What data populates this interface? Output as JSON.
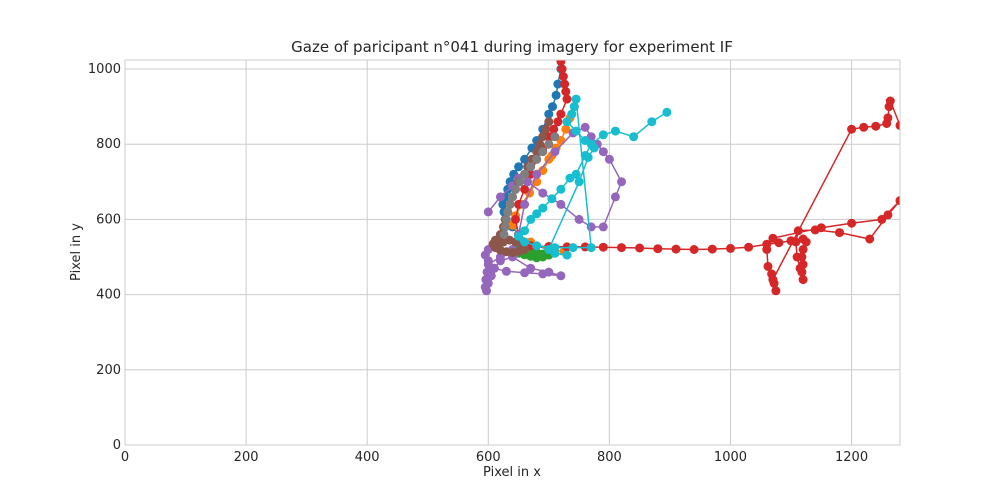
{
  "chart_data": {
    "type": "scatter",
    "title": "Gaze of paricipant n°041 during imagery for experiment IF",
    "xlabel": "Pixel in x",
    "ylabel": "Pixel in y",
    "xlim": [
      0,
      1280
    ],
    "ylim": [
      0,
      1024
    ],
    "xticks": [
      0,
      200,
      400,
      600,
      800,
      1000,
      1200
    ],
    "yticks": [
      0,
      200,
      400,
      600,
      800,
      1000
    ],
    "grid": true,
    "legend": "none",
    "series": [
      {
        "color": "#1f77b4",
        "points": [
          [
            720,
            1000
          ],
          [
            715,
            960
          ],
          [
            712,
            930
          ],
          [
            706,
            900
          ],
          [
            700,
            880
          ],
          [
            690,
            840
          ],
          [
            680,
            810
          ],
          [
            672,
            790
          ],
          [
            660,
            760
          ],
          [
            650,
            740
          ],
          [
            642,
            720
          ],
          [
            636,
            700
          ],
          [
            632,
            680
          ],
          [
            628,
            660
          ],
          [
            624,
            640
          ],
          [
            626,
            620
          ],
          [
            640,
            580
          ],
          [
            660,
            540
          ],
          [
            700,
            520
          ]
        ]
      },
      {
        "color": "#ff7f0e",
        "points": [
          [
            742,
            900
          ],
          [
            735,
            870
          ],
          [
            728,
            840
          ],
          [
            720,
            810
          ],
          [
            712,
            790
          ],
          [
            705,
            770
          ],
          [
            700,
            760
          ],
          [
            690,
            730
          ],
          [
            680,
            700
          ],
          [
            668,
            670
          ],
          [
            655,
            640
          ],
          [
            645,
            610
          ],
          [
            640,
            585
          ],
          [
            650,
            560
          ],
          [
            670,
            540
          ],
          [
            700,
            520
          ],
          [
            725,
            515
          ]
        ]
      },
      {
        "color": "#2ca02c",
        "points": [
          [
            650,
            530
          ],
          [
            660,
            520
          ],
          [
            670,
            515
          ],
          [
            680,
            512
          ],
          [
            690,
            508
          ],
          [
            700,
            505
          ],
          [
            690,
            500
          ],
          [
            680,
            498
          ],
          [
            670,
            502
          ],
          [
            660,
            506
          ],
          [
            650,
            510
          ],
          [
            640,
            512
          ]
        ]
      },
      {
        "color": "#d62728",
        "points": [
          [
            720,
            1020
          ],
          [
            722,
            1000
          ],
          [
            724,
            980
          ],
          [
            726,
            960
          ],
          [
            728,
            940
          ],
          [
            730,
            920
          ],
          [
            720,
            880
          ],
          [
            715,
            860
          ],
          [
            708,
            840
          ],
          [
            700,
            820
          ],
          [
            690,
            790
          ],
          [
            680,
            760
          ],
          [
            670,
            720
          ],
          [
            660,
            680
          ],
          [
            650,
            640
          ],
          [
            645,
            600
          ],
          [
            650,
            560
          ],
          [
            670,
            530
          ],
          [
            700,
            528
          ],
          [
            730,
            527
          ],
          [
            760,
            527
          ],
          [
            790,
            526
          ],
          [
            820,
            525
          ],
          [
            850,
            524
          ],
          [
            880,
            522
          ],
          [
            910,
            521
          ],
          [
            940,
            520
          ],
          [
            970,
            521
          ],
          [
            1000,
            523
          ],
          [
            1030,
            526
          ],
          [
            1060,
            534
          ],
          [
            1080,
            538
          ],
          [
            1100,
            543
          ],
          [
            1120,
            548
          ],
          [
            1125,
            540
          ],
          [
            1120,
            520
          ],
          [
            1118,
            500
          ],
          [
            1120,
            480
          ],
          [
            1118,
            460
          ],
          [
            1120,
            440
          ],
          [
            1115,
            470
          ],
          [
            1110,
            500
          ],
          [
            1108,
            540
          ],
          [
            1112,
            570
          ],
          [
            1140,
            572
          ],
          [
            1180,
            565
          ],
          [
            1230,
            548
          ],
          [
            1260,
            612
          ],
          [
            1280,
            650
          ],
          [
            1250,
            600
          ],
          [
            1200,
            590
          ],
          [
            1150,
            578
          ],
          [
            1070,
            550
          ],
          [
            1060,
            520
          ],
          [
            1062,
            475
          ],
          [
            1068,
            455
          ],
          [
            1072,
            430
          ],
          [
            1075,
            410
          ],
          [
            1070,
            440
          ],
          [
            1200,
            840
          ],
          [
            1220,
            845
          ],
          [
            1240,
            848
          ],
          [
            1258,
            855
          ],
          [
            1260,
            870
          ],
          [
            1262,
            900
          ],
          [
            1264,
            915
          ],
          [
            1280,
            850
          ]
        ]
      },
      {
        "color": "#9467bd",
        "points": [
          [
            600,
            620
          ],
          [
            620,
            660
          ],
          [
            640,
            690
          ],
          [
            650,
            710
          ],
          [
            665,
            700
          ],
          [
            690,
            670
          ],
          [
            720,
            640
          ],
          [
            750,
            600
          ],
          [
            770,
            580
          ],
          [
            790,
            580
          ],
          [
            810,
            660
          ],
          [
            820,
            700
          ],
          [
            800,
            760
          ],
          [
            790,
            780
          ],
          [
            780,
            800
          ],
          [
            770,
            820
          ],
          [
            760,
            845
          ],
          [
            740,
            830
          ],
          [
            710,
            780
          ],
          [
            680,
            720
          ],
          [
            660,
            640
          ],
          [
            650,
            560
          ],
          [
            640,
            520
          ],
          [
            620,
            500
          ],
          [
            600,
            480
          ],
          [
            598,
            460
          ],
          [
            596,
            440
          ],
          [
            595,
            420
          ],
          [
            597,
            410
          ],
          [
            600,
            430
          ],
          [
            605,
            450
          ],
          [
            610,
            470
          ],
          [
            620,
            490
          ],
          [
            640,
            500
          ],
          [
            670,
            470
          ],
          [
            700,
            460
          ],
          [
            720,
            450
          ],
          [
            690,
            455
          ],
          [
            660,
            458
          ],
          [
            630,
            462
          ],
          [
            610,
            470
          ],
          [
            600,
            490
          ],
          [
            595,
            505
          ],
          [
            600,
            520
          ],
          [
            610,
            530
          ]
        ]
      },
      {
        "color": "#8c564b",
        "points": [
          [
            700,
            860
          ],
          [
            695,
            840
          ],
          [
            690,
            820
          ],
          [
            685,
            800
          ],
          [
            680,
            780
          ],
          [
            672,
            760
          ],
          [
            665,
            740
          ],
          [
            660,
            720
          ],
          [
            650,
            700
          ],
          [
            645,
            680
          ],
          [
            640,
            660
          ],
          [
            636,
            640
          ],
          [
            632,
            620
          ],
          [
            628,
            600
          ],
          [
            625,
            580
          ],
          [
            620,
            560
          ],
          [
            612,
            545
          ],
          [
            615,
            535
          ],
          [
            625,
            540
          ],
          [
            635,
            545
          ],
          [
            645,
            540
          ],
          [
            655,
            530
          ],
          [
            660,
            520
          ],
          [
            650,
            515
          ],
          [
            640,
            512
          ],
          [
            630,
            514
          ],
          [
            620,
            518
          ],
          [
            612,
            525
          ],
          [
            608,
            535
          ],
          [
            615,
            545
          ]
        ]
      },
      {
        "color": "#7f7f7f",
        "points": [
          [
            710,
            820
          ],
          [
            700,
            800
          ],
          [
            690,
            780
          ],
          [
            680,
            760
          ],
          [
            670,
            740
          ],
          [
            660,
            720
          ],
          [
            652,
            700
          ],
          [
            645,
            680
          ],
          [
            640,
            660
          ],
          [
            636,
            640
          ],
          [
            632,
            620
          ],
          [
            630,
            600
          ],
          [
            628,
            580
          ],
          [
            626,
            560
          ]
        ]
      },
      {
        "color": "#17becf",
        "points": [
          [
            895,
            885
          ],
          [
            870,
            860
          ],
          [
            840,
            820
          ],
          [
            810,
            835
          ],
          [
            790,
            825
          ],
          [
            770,
            800
          ],
          [
            760,
            770
          ],
          [
            745,
            720
          ],
          [
            735,
            710
          ],
          [
            720,
            680
          ],
          [
            705,
            655
          ],
          [
            690,
            630
          ],
          [
            680,
            615
          ],
          [
            670,
            600
          ],
          [
            660,
            570
          ],
          [
            650,
            555
          ],
          [
            660,
            540
          ],
          [
            680,
            530
          ],
          [
            710,
            525
          ],
          [
            740,
            525
          ],
          [
            770,
            525
          ],
          [
            745,
            920
          ],
          [
            742,
            900
          ],
          [
            738,
            880
          ],
          [
            730,
            860
          ],
          [
            745,
            835
          ],
          [
            760,
            810
          ],
          [
            775,
            790
          ],
          [
            765,
            765
          ],
          [
            750,
            700
          ],
          [
            700,
            520
          ],
          [
            710,
            510
          ],
          [
            730,
            505
          ]
        ]
      }
    ]
  }
}
